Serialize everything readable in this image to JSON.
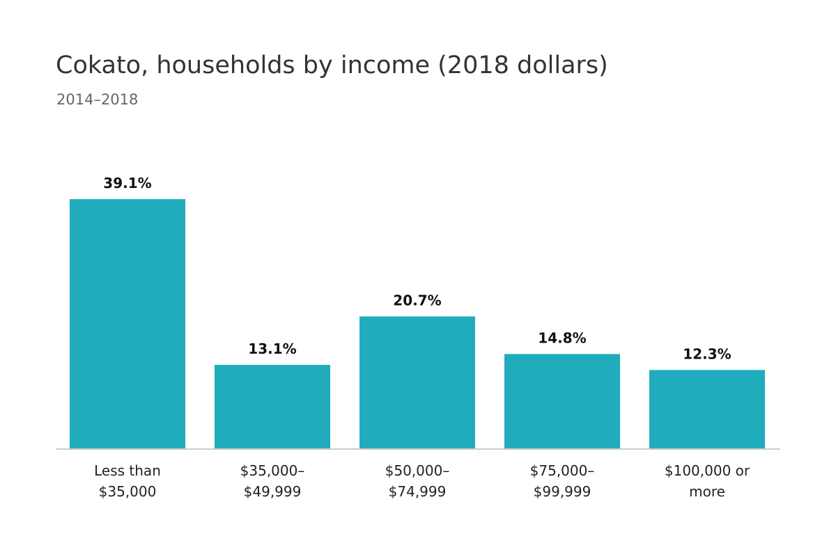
{
  "chart_data": {
    "type": "bar",
    "title": "Cokato, households by income (2018 dollars)",
    "subtitle": "2014–2018",
    "categories": [
      [
        "Less than",
        "$35,000"
      ],
      [
        "$35,000–",
        "$49,999"
      ],
      [
        "$50,000–",
        "$74,999"
      ],
      [
        "$75,000–",
        "$99,999"
      ],
      [
        "$100,000 or",
        "more"
      ]
    ],
    "values": [
      39.1,
      13.1,
      20.7,
      14.8,
      12.3
    ],
    "value_labels": [
      "39.1%",
      "13.1%",
      "20.7%",
      "14.8%",
      "12.3%"
    ],
    "unit": "%",
    "ylim": [
      0,
      39.1
    ],
    "grid": false,
    "legend": "none",
    "colors": {
      "bar": "#20acbd",
      "baseline": "#cccccc",
      "title": "#333333",
      "subtitle": "#666666"
    }
  }
}
